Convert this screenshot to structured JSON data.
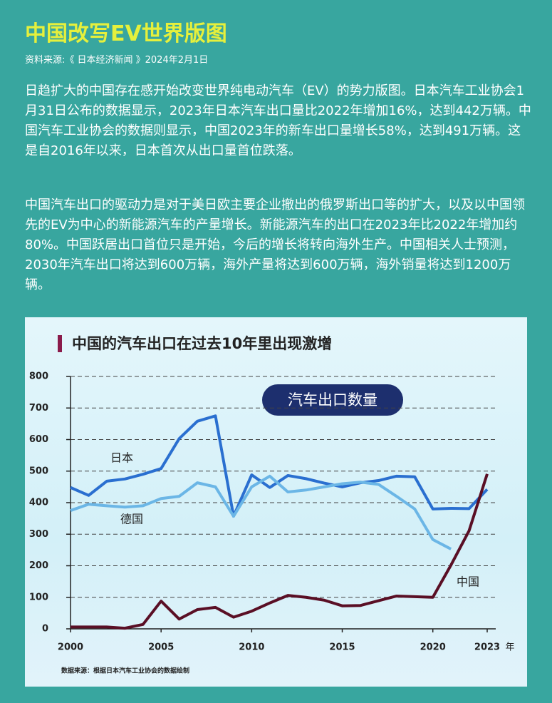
{
  "header": {
    "title": "中国改写EV世界版图",
    "source": "资料来源:《 日本经济新闻 》2024年2月1日"
  },
  "body": {
    "paragraphs": [
      "日趋扩大的中国存在感开始改变世界纯电动汽车（EV）的势力版图。日本汽车工业协会1月31日公布的数据显示，2023年日本汽车出口量比2022年增加16%，达到442万辆。中国汽车工业协会的数据则显示，中国2023年的新车出口量增长58%，达到491万辆。这是自2016年以来，日本首次从出口量首位跌落。",
      "中国汽车出口的驱动力是对于美日欧主要企业撤出的俄罗斯出口等的扩大，以及以中国领先的EV为中心的新能源汽车的产量增长。新能源汽车的出口在2023年比2022年增加约80%。中国跃居出口首位只是开始，今后的增长将转向海外生产。中国相关人士预测，2030年汽车出口将达到600万辆，海外产量将达到600万辆，海外销量将达到1200万辆。"
    ]
  },
  "chart_data": {
    "type": "line",
    "title": "中国的汽车出口在过去10年里出现激增",
    "annotation": "汽车出口数量",
    "xlabel": "年",
    "source": "数据来源：根据日本汽车工业协会的数据绘制",
    "x": [
      2000,
      2001,
      2002,
      2003,
      2004,
      2005,
      2006,
      2007,
      2008,
      2009,
      2010,
      2011,
      2012,
      2013,
      2014,
      2015,
      2016,
      2017,
      2018,
      2019,
      2020,
      2021,
      2022,
      2023
    ],
    "series": [
      {
        "name": "日本",
        "color": "#2a6fd0",
        "values": [
          448,
          423,
          468,
          475,
          490,
          508,
          603,
          658,
          675,
          357,
          488,
          448,
          486,
          476,
          462,
          450,
          463,
          470,
          484,
          482,
          380,
          382,
          381,
          442
        ]
      },
      {
        "name": "德国",
        "color": "#6bb6e6",
        "values": [
          375,
          395,
          390,
          386,
          390,
          413,
          420,
          463,
          450,
          357,
          450,
          484,
          434,
          440,
          450,
          460,
          465,
          458,
          420,
          380,
          283,
          253,
          null,
          null
        ]
      },
      {
        "name": "中国",
        "color": "#5a0f25",
        "values": [
          6,
          6,
          6,
          2,
          14,
          88,
          31,
          61,
          68,
          37,
          56,
          82,
          106,
          100,
          91,
          73,
          74,
          89,
          104,
          102,
          100,
          202,
          311,
          491
        ]
      }
    ],
    "xlim": [
      2000,
      2023
    ],
    "xticks": [
      2000,
      2005,
      2010,
      2015,
      2020,
      2023
    ],
    "ylim": [
      0,
      800
    ],
    "yticks": [
      0,
      100,
      200,
      300,
      400,
      500,
      600,
      700,
      800
    ],
    "grid": true
  }
}
